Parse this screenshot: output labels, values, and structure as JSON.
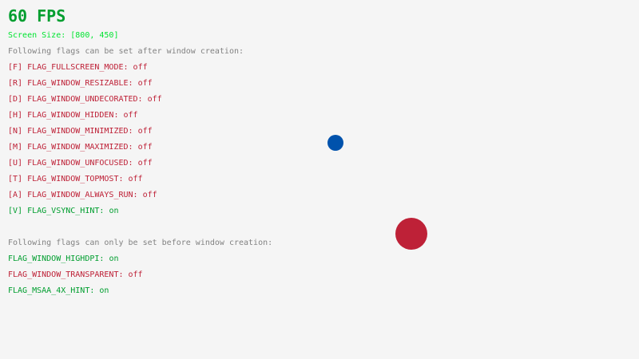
{
  "fps": "60 FPS",
  "screen_size": "Screen Size: [800, 450]",
  "after_header": "Following flags can be set after window creation:",
  "after_flags": [
    {
      "label": "[F] FLAG_FULLSCREEN_MODE: ",
      "value": "off"
    },
    {
      "label": "[R] FLAG_WINDOW_RESIZABLE: ",
      "value": "off"
    },
    {
      "label": "[D] FLAG_WINDOW_UNDECORATED: ",
      "value": "off"
    },
    {
      "label": "[H] FLAG_WINDOW_HIDDEN: ",
      "value": "off"
    },
    {
      "label": "[N] FLAG_WINDOW_MINIMIZED: ",
      "value": "off"
    },
    {
      "label": "[M] FLAG_WINDOW_MAXIMIZED: ",
      "value": "off"
    },
    {
      "label": "[U] FLAG_WINDOW_UNFOCUSED: ",
      "value": "off"
    },
    {
      "label": "[T] FLAG_WINDOW_TOPMOST: ",
      "value": "off"
    },
    {
      "label": "[A] FLAG_WINDOW_ALWAYS_RUN: ",
      "value": "off"
    },
    {
      "label": "[V] FLAG_VSYNC_HINT: ",
      "value": "on"
    }
  ],
  "before_header": "Following flags can only be set before window creation:",
  "before_flags": [
    {
      "label": "FLAG_WINDOW_HIGHDPI: ",
      "value": "on"
    },
    {
      "label": "FLAG_WINDOW_TRANSPARENT: ",
      "value": "off"
    },
    {
      "label": "FLAG_MSAA_4X_HINT: ",
      "value": "on"
    }
  ],
  "colors": {
    "on": "#009e2f",
    "off": "#be2137",
    "screen_size": "#00e430",
    "header": "#828282",
    "background": "#f5f5f5",
    "small_ball": "#0052ac",
    "large_ball": "#be2137"
  }
}
